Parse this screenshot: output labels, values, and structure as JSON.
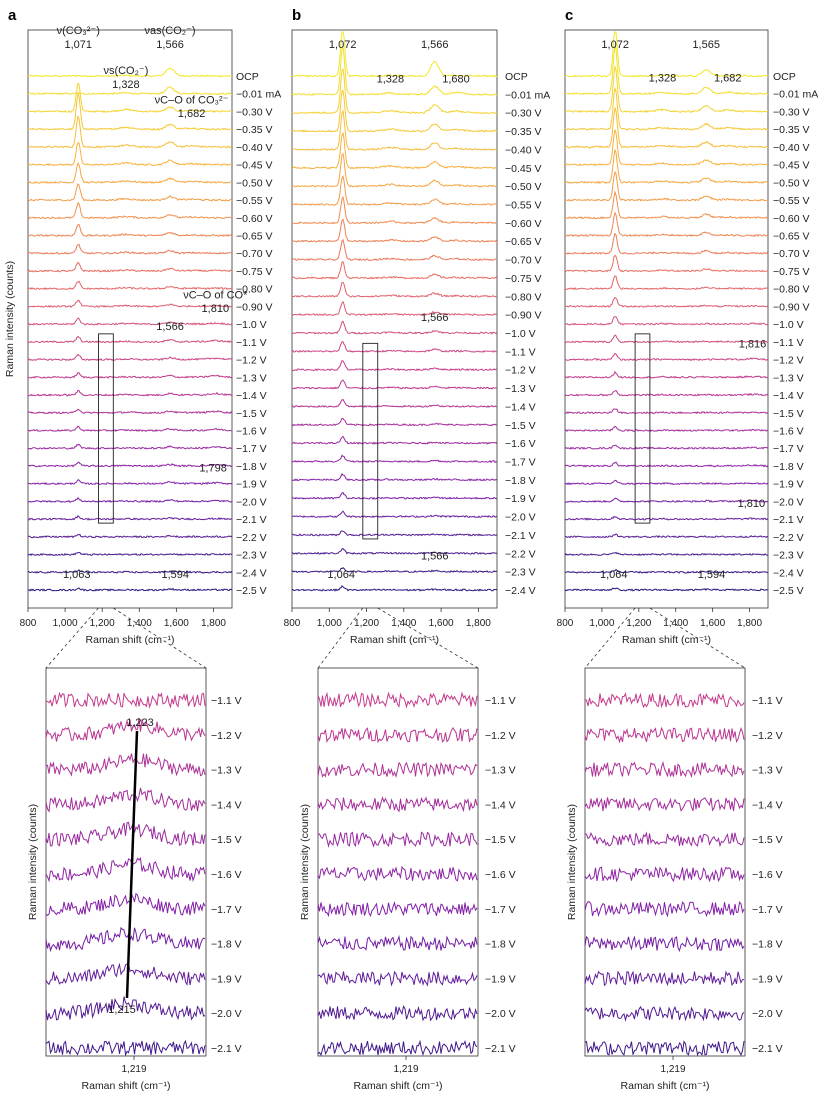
{
  "figure": {
    "panels": [
      "a",
      "b",
      "c"
    ],
    "x_ticks": [
      "800",
      "1,000",
      "1,200",
      "1,400",
      "1,600",
      "1,800"
    ],
    "x_label": "Raman shift (cm⁻¹)",
    "y_label": "Raman intensity (counts)",
    "zoom_tick": "1,219"
  },
  "chart_data": [
    {
      "type": "line",
      "panel": "a",
      "xlabel": "Raman shift (cm⁻¹)",
      "ylabel": "Raman intensity (counts)",
      "xlim": [
        800,
        1900
      ],
      "series_labels": [
        "OCP",
        "−0.01 mA",
        "−0.30 V",
        "−0.35 V",
        "−0.40 V",
        "−0.45 V",
        "−0.50 V",
        "−0.55 V",
        "−0.60 V",
        "−0.65 V",
        "−0.70 V",
        "−0.75 V",
        "−0.80 V",
        "−0.90 V",
        "−1.0 V",
        "−1.1 V",
        "−1.2 V",
        "−1.3 V",
        "−1.4 V",
        "−1.5 V",
        "−1.6 V",
        "−1.7 V",
        "−1.8 V",
        "−1.9 V",
        "−2.0 V",
        "−2.1 V",
        "−2.2 V",
        "−2.3 V",
        "−2.4 V",
        "−2.5 V"
      ],
      "peaks": [
        {
          "x": 1071,
          "amp": [
            0.3,
            0.4,
            18,
            22,
            19,
            14,
            12,
            10,
            9,
            7,
            5.5,
            5,
            4.5,
            4,
            3.5,
            3,
            2.8,
            2.6,
            2.5,
            2.4,
            2.3,
            2.2,
            2.1,
            2,
            1.8,
            1.6,
            1.4,
            1.3,
            1.2,
            1.1
          ]
        },
        {
          "x": 1328,
          "amp": [
            0.3,
            0.5,
            1.2,
            1.2,
            1,
            1,
            0.9,
            0.8,
            0.8,
            0.7,
            0.6,
            0.5,
            0.5,
            0.4,
            0.4,
            0.3,
            0.3,
            0.3,
            0.3,
            0.3,
            0.2,
            0.2,
            0.2,
            0.2,
            0.2,
            0.2,
            0.1,
            0.1,
            0.1,
            0.1
          ]
        },
        {
          "x": 1566,
          "amp": [
            5,
            4,
            2.5,
            3,
            3,
            2.6,
            2.4,
            2.2,
            2,
            1.8,
            1.5,
            1.4,
            1.3,
            1.2,
            1.2,
            1.1,
            1.1,
            1,
            1,
            1,
            1,
            1,
            0.9,
            0.9,
            0.8,
            0.7,
            0.6,
            0.5,
            0.5,
            0.6
          ]
        },
        {
          "x": 1682,
          "amp": [
            0.2,
            0.3,
            0.7,
            0.7,
            0.6,
            0.6,
            0.5,
            0.5,
            0.4,
            0.4,
            0.3,
            0.3,
            0.3,
            0.2,
            0.2,
            0.2,
            0.2,
            0.2,
            0.2,
            0.2,
            0.1,
            0.1,
            0.1,
            0.1,
            0.1,
            0.1,
            0.1,
            0.1,
            0.1,
            0.1
          ]
        },
        {
          "x": 1810,
          "amp": [
            0,
            0,
            0,
            0,
            0,
            0,
            0,
            0,
            0,
            0,
            0.1,
            0.2,
            0.3,
            0.5,
            0.6,
            0.8,
            0.9,
            1,
            1,
            0.9,
            0.8,
            0.7,
            0.6,
            0.5,
            0.4,
            0.3,
            0.2,
            0.1,
            0.1,
            0.1
          ]
        }
      ],
      "annotations": [
        {
          "text": "ν(CO₃²⁻)",
          "x": 1071,
          "series": "top",
          "role": "label"
        },
        {
          "text": "1,071",
          "x": 1071,
          "series": "top",
          "role": "value"
        },
        {
          "text": "νas(CO₂⁻)",
          "x": 1566,
          "series": "top",
          "role": "label"
        },
        {
          "text": "1,566",
          "x": 1566,
          "series": "top",
          "role": "value"
        },
        {
          "text": "νs(CO₂⁻)",
          "x": 1328,
          "series": "top",
          "role": "label"
        },
        {
          "text": "1,328",
          "x": 1328,
          "series": "top",
          "role": "value"
        },
        {
          "text": "νC–O of CO₃²⁻",
          "x": 1682,
          "series": "−0.30 V",
          "role": "label"
        },
        {
          "text": "1,682",
          "x": 1682,
          "series": "−0.35 V",
          "role": "value"
        },
        {
          "text": "νC–O of CO*",
          "x": 1810,
          "series": "−0.90 V",
          "role": "label"
        },
        {
          "text": "1,810",
          "x": 1810,
          "series": "−1.0 V",
          "role": "value"
        },
        {
          "text": "1,566",
          "x": 1566,
          "series": "−1.1 V",
          "role": "value"
        },
        {
          "text": "1,798",
          "x": 1798,
          "series": "−1.9 V",
          "role": "value"
        },
        {
          "text": "1,063",
          "x": 1063,
          "series": "−2.5 V",
          "role": "value"
        },
        {
          "text": "1,594",
          "x": 1594,
          "series": "−2.5 V",
          "role": "value"
        }
      ],
      "zoom_box": {
        "x": [
          1180,
          1260
        ],
        "series": [
          "−1.1 V",
          "−2.1 V"
        ]
      }
    },
    {
      "type": "line",
      "panel": "b",
      "xlabel": "Raman shift (cm⁻¹)",
      "xlim": [
        800,
        1900
      ],
      "series_labels": [
        "OCP",
        "−0.01 mA",
        "−0.30 V",
        "−0.35 V",
        "−0.40 V",
        "−0.45 V",
        "−0.50 V",
        "−0.55 V",
        "−0.60 V",
        "−0.65 V",
        "−0.70 V",
        "−0.75 V",
        "−0.80 V",
        "−0.90 V",
        "−1.0 V",
        "−1.1 V",
        "−1.2 V",
        "−1.3 V",
        "−1.4 V",
        "−1.5 V",
        "−1.6 V",
        "−1.7 V",
        "−1.8 V",
        "−1.9 V",
        "−2.0 V",
        "−2.1 V",
        "−2.2 V",
        "−2.3 V",
        "−2.4 V"
      ],
      "peaks": [
        {
          "x": 1072,
          "amp": [
            30,
            30,
            28,
            26,
            24,
            22,
            20,
            18,
            16,
            14,
            12,
            10,
            9,
            8,
            7,
            6,
            5.5,
            5,
            4.5,
            4,
            3.8,
            3.6,
            3.4,
            3.2,
            3,
            2.8,
            2.6,
            2.4,
            2.2
          ]
        },
        {
          "x": 1328,
          "amp": [
            0.3,
            0.8,
            1.3,
            1.3,
            1.2,
            1.1,
            1,
            0.9,
            0.8,
            0.7,
            0.6,
            0.5,
            0.5,
            0.4,
            0.4,
            0.3,
            0.3,
            0.3,
            0.3,
            0.2,
            0.2,
            0.2,
            0.2,
            0.2,
            0.2,
            0.2,
            0.1,
            0.1,
            0.1
          ]
        },
        {
          "x": 1566,
          "amp": [
            9,
            5,
            5,
            4.5,
            4,
            3.8,
            3.5,
            3.2,
            3,
            2.6,
            2.3,
            2,
            1.8,
            1.6,
            1.4,
            1.2,
            1,
            0.9,
            0.8,
            0.7,
            0.6,
            0.6,
            0.5,
            0.5,
            0.5,
            0.4,
            0.4,
            0.6,
            0.4
          ]
        },
        {
          "x": 1680,
          "amp": [
            0.3,
            1.2,
            1,
            0.9,
            0.8,
            0.7,
            0.6,
            0.5,
            0.5,
            0.4,
            0.4,
            0.3,
            0.3,
            0.3,
            0.2,
            0.2,
            0.2,
            0.2,
            0.1,
            0.1,
            0.1,
            0.1,
            0.1,
            0.1,
            0.1,
            0.1,
            0.1,
            0.1,
            0.1
          ]
        }
      ],
      "annotations": [
        {
          "text": "1,072",
          "x": 1072,
          "series": "top",
          "role": "value"
        },
        {
          "text": "1,566",
          "x": 1566,
          "series": "top",
          "role": "value"
        },
        {
          "text": "1,328",
          "x": 1328,
          "series": "−0.01 mA",
          "role": "value"
        },
        {
          "text": "1,680",
          "x": 1680,
          "series": "−0.01 mA",
          "role": "value"
        },
        {
          "text": "1,566",
          "x": 1566,
          "series": "−1.0 V",
          "role": "value"
        },
        {
          "text": "1,064",
          "x": 1064,
          "series": "−2.4 V",
          "role": "value"
        },
        {
          "text": "1,566",
          "x": 1566,
          "series": "−2.3 V",
          "role": "value"
        }
      ],
      "zoom_box": {
        "x": [
          1180,
          1260
        ],
        "series": [
          "−1.1 V",
          "−2.1 V"
        ]
      }
    },
    {
      "type": "line",
      "panel": "c",
      "xlabel": "Raman shift (cm⁻¹)",
      "xlim": [
        800,
        1900
      ],
      "series_labels": [
        "OCP",
        "−0.01 mA",
        "−0.30 V",
        "−0.35 V",
        "−0.40 V",
        "−0.45 V",
        "−0.50 V",
        "−0.55 V",
        "−0.60 V",
        "−0.65 V",
        "−0.70 V",
        "−0.75 V",
        "−0.80 V",
        "−0.90 V",
        "−1.0 V",
        "−1.1 V",
        "−1.2 V",
        "−1.3 V",
        "−1.4 V",
        "−1.5 V",
        "−1.6 V",
        "−1.7 V",
        "−1.8 V",
        "−1.9 V",
        "−2.0 V",
        "−2.1 V",
        "−2.2 V",
        "−2.3 V",
        "−2.4 V",
        "−2.5 V"
      ],
      "peaks": [
        {
          "x": 1072,
          "amp": [
            30,
            30,
            28,
            26,
            24,
            22,
            20,
            18,
            16,
            14,
            12,
            10,
            8,
            6,
            5,
            4,
            3.5,
            3,
            2.8,
            2.6,
            2.4,
            2.2,
            2,
            1.9,
            1.8,
            1.7,
            1.6,
            1.5,
            1.4,
            1.3
          ]
        },
        {
          "x": 1328,
          "amp": [
            0.3,
            0.6,
            1,
            1,
            0.9,
            0.8,
            0.8,
            0.7,
            0.6,
            0.5,
            0.5,
            0.4,
            0.3,
            0.3,
            0.3,
            0.2,
            0.2,
            0.2,
            0.2,
            0.2,
            0.1,
            0.1,
            0.1,
            0.1,
            0.1,
            0.1,
            0.1,
            0.1,
            0.1,
            0.1
          ]
        },
        {
          "x": 1565,
          "amp": [
            4,
            4,
            3.5,
            3.2,
            3,
            2.8,
            2.6,
            2.4,
            2.2,
            2,
            1.6,
            1.2,
            0.6,
            0.5,
            0.4,
            0.3,
            0.3,
            0.3,
            0.2,
            0.2,
            0.2,
            0.2,
            0.2,
            0.2,
            0.2,
            0.2,
            0.2,
            0.2,
            0.3,
            0.4
          ]
        },
        {
          "x": 1682,
          "amp": [
            0.3,
            0.8,
            0.9,
            0.8,
            0.7,
            0.6,
            0.6,
            0.5,
            0.5,
            0.4,
            0.4,
            0.3,
            0.3,
            0.2,
            0.2,
            0.2,
            0.2,
            0.1,
            0.1,
            0.1,
            0.1,
            0.1,
            0.1,
            0.1,
            0.1,
            0.1,
            0.1,
            0.1,
            0.1,
            0.1
          ]
        },
        {
          "x": 1814,
          "amp": [
            0,
            0,
            0,
            0,
            0,
            0,
            0,
            0,
            0,
            0,
            0,
            0,
            0.1,
            0.2,
            0.3,
            0.4,
            0.5,
            0.5,
            0.4,
            0.3,
            0.3,
            0.3,
            0.3,
            0.3,
            0.4,
            0.3,
            0.2,
            0.1,
            0.1,
            0.1
          ]
        }
      ],
      "annotations": [
        {
          "text": "1,072",
          "x": 1072,
          "series": "top",
          "role": "value"
        },
        {
          "text": "1,565",
          "x": 1565,
          "series": "top",
          "role": "value"
        },
        {
          "text": "1,328",
          "x": 1328,
          "series": "−0.01 mA",
          "role": "value"
        },
        {
          "text": "1,682",
          "x": 1682,
          "series": "−0.01 mA",
          "role": "value"
        },
        {
          "text": "1,816",
          "x": 1816,
          "series": "−1.2 V",
          "role": "value"
        },
        {
          "text": "1,810",
          "x": 1810,
          "series": "−2.1 V",
          "role": "value"
        },
        {
          "text": "1,064",
          "x": 1064,
          "series": "−2.5 V",
          "role": "value"
        },
        {
          "text": "1,594",
          "x": 1594,
          "series": "−2.5 V",
          "role": "value"
        }
      ],
      "zoom_box": {
        "x": [
          1180,
          1260
        ],
        "series": [
          "−1.1 V",
          "−2.1 V"
        ]
      }
    },
    {
      "type": "line",
      "panel": "a-zoom",
      "xlabel": "Raman shift (cm⁻¹)",
      "ylabel": "Raman intensity (counts)",
      "x_ticks": [
        1219
      ],
      "series_labels": [
        "−1.1 V",
        "−1.2 V",
        "−1.3 V",
        "−1.4 V",
        "−1.5 V",
        "−1.6 V",
        "−1.7 V",
        "−1.8 V",
        "−1.9 V",
        "−2.0 V",
        "−2.1 V"
      ],
      "annotations": [
        {
          "text": "1,223",
          "x": 1223,
          "series": "−1.2 V",
          "role": "value"
        },
        {
          "text": "1,215",
          "x": 1215,
          "series": "−2.0 V",
          "role": "value"
        }
      ],
      "trend_line": {
        "from": {
          "x": 1223,
          "series": "−1.2 V"
        },
        "to": {
          "x": 1215,
          "series": "−1.9 V"
        }
      }
    },
    {
      "type": "line",
      "panel": "b-zoom",
      "xlabel": "Raman shift (cm⁻¹)",
      "ylabel": "Raman intensity (counts)",
      "x_ticks": [
        1219
      ],
      "series_labels": [
        "−1.1 V",
        "−1.2 V",
        "−1.3 V",
        "−1.4 V",
        "−1.5 V",
        "−1.6 V",
        "−1.7 V",
        "−1.8 V",
        "−1.9 V",
        "−2.0 V",
        "−2.1 V"
      ]
    },
    {
      "type": "line",
      "panel": "c-zoom",
      "xlabel": "Raman shift (cm⁻¹)",
      "ylabel": "Raman intensity (counts)",
      "x_ticks": [
        1219
      ],
      "series_labels": [
        "−1.1 V",
        "−1.2 V",
        "−1.3 V",
        "−1.4 V",
        "−1.5 V",
        "−1.6 V",
        "−1.7 V",
        "−1.8 V",
        "−1.9 V",
        "−2.0 V",
        "−2.1 V"
      ]
    }
  ]
}
